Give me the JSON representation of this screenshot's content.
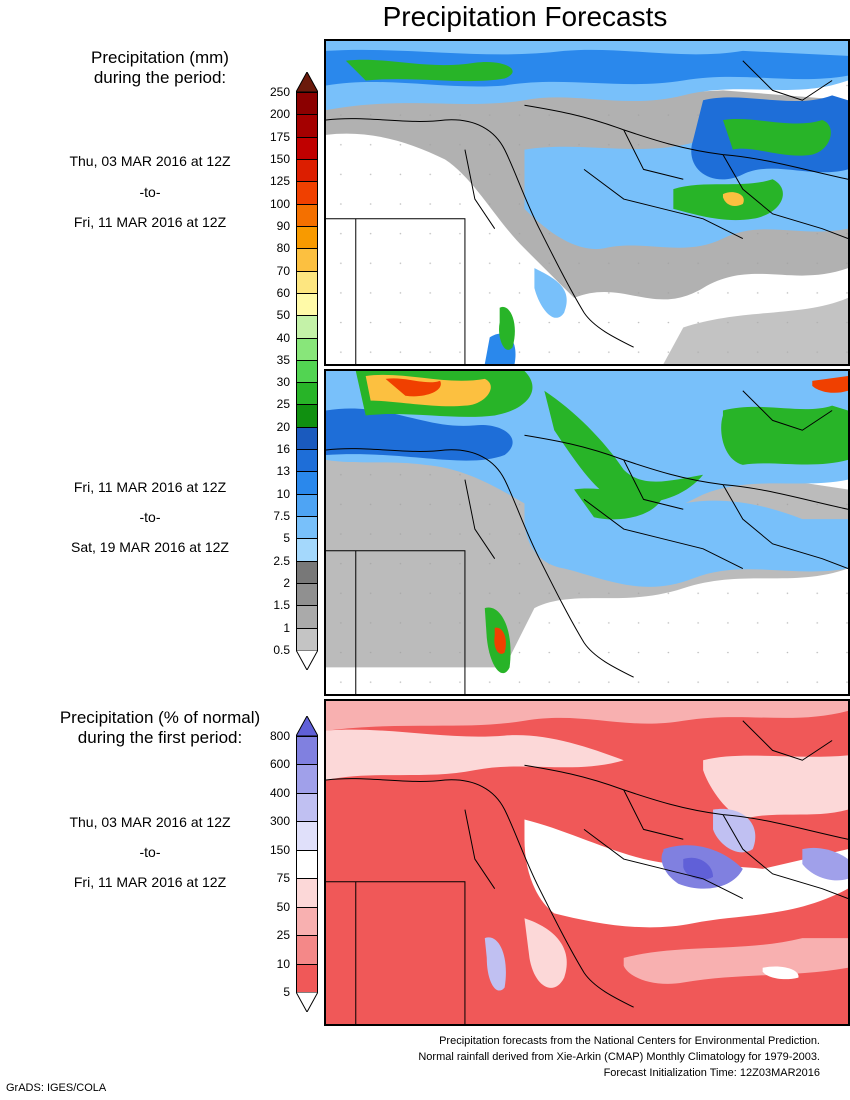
{
  "title": "Precipitation Forecasts",
  "amount_legend": {
    "heading_line1": "Precipitation (mm)",
    "heading_line2": "during the period:",
    "levels": [
      "250",
      "200",
      "175",
      "150",
      "125",
      "100",
      "90",
      "80",
      "70",
      "60",
      "50",
      "40",
      "35",
      "30",
      "25",
      "20",
      "16",
      "13",
      "10",
      "7.5",
      "5",
      "2.5",
      "2",
      "1.5",
      "1",
      "0.5"
    ],
    "colors": [
      "#6b1a0c",
      "#8b0000",
      "#a40000",
      "#c00000",
      "#dc1e00",
      "#f04000",
      "#f47000",
      "#f89a00",
      "#fcc040",
      "#fde680",
      "#fffaa8",
      "#c4f2a8",
      "#88e67a",
      "#52d452",
      "#28b428",
      "#109010",
      "#1a5abe",
      "#1e6ed8",
      "#2a88ec",
      "#4ea4f4",
      "#78c0fa",
      "#a4d8fc",
      "#787878",
      "#909090",
      "#aaaaaa",
      "#c4c4c4"
    ]
  },
  "period1": {
    "start": "Thu, 03 MAR 2016 at 12Z",
    "sep": "-to-",
    "end": "Fri, 11 MAR 2016 at 12Z"
  },
  "period2": {
    "start": "Fri, 11 MAR 2016 at 12Z",
    "sep": "-to-",
    "end": "Sat, 19 MAR 2016 at 12Z"
  },
  "percent_legend": {
    "heading_line1": "Precipitation (% of normal)",
    "heading_line2": "during the first period:",
    "levels": [
      "800",
      "600",
      "400",
      "300",
      "150",
      "75",
      "50",
      "25",
      "10",
      "5"
    ],
    "colors": [
      "#6060d8",
      "#8080e0",
      "#a0a0ea",
      "#c0c0f2",
      "#e0e0fa",
      "#ffffff",
      "#fcd8d8",
      "#f8b0b0",
      "#f48888",
      "#f05858"
    ]
  },
  "period3": {
    "start": "Thu, 03 MAR 2016 at 12Z",
    "sep": "-to-",
    "end": "Fri, 11 MAR 2016 at 12Z"
  },
  "footer": {
    "line1": "Precipitation forecasts from the National Centers for Environmental Prediction.",
    "line2": "Normal rainfall derived from Xie-Arkin (CMAP) Monthly Climatology for 1979-2003.",
    "line3": "Forecast Initialization Time: 12Z03MAR2016"
  },
  "credit": "GrADS: IGES/COLA"
}
